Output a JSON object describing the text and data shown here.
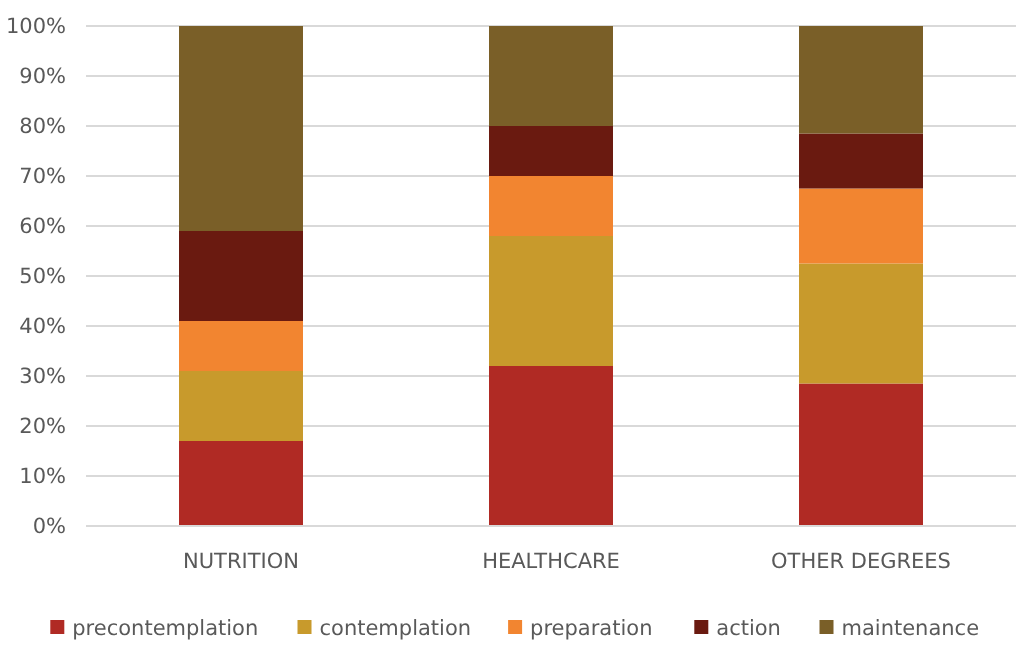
{
  "chart_data": {
    "type": "bar",
    "stacked": true,
    "categories": [
      "NUTRITION",
      "HEALTHCARE",
      "OTHER DEGREES"
    ],
    "series": [
      {
        "name": "precontemplation",
        "color": "#b02a24",
        "values": [
          17,
          32,
          28.5
        ]
      },
      {
        "name": "contemplation",
        "color": "#c89a2c",
        "values": [
          14,
          26,
          24
        ]
      },
      {
        "name": "preparation",
        "color": "#f28530",
        "values": [
          10,
          12,
          15
        ]
      },
      {
        "name": "action",
        "color": "#6a1a10",
        "values": [
          18,
          10,
          11
        ]
      },
      {
        "name": "maintenance",
        "color": "#7a5f28",
        "values": [
          41,
          20,
          21.5
        ]
      }
    ],
    "ylim": [
      0,
      100
    ],
    "yticks": [
      {
        "value": 0,
        "label": "0%"
      },
      {
        "value": 10,
        "label": "10%"
      },
      {
        "value": 20,
        "label": "20%"
      },
      {
        "value": 30,
        "label": "30%"
      },
      {
        "value": 40,
        "label": "40%"
      },
      {
        "value": 50,
        "label": "50%"
      },
      {
        "value": 60,
        "label": "60%"
      },
      {
        "value": 70,
        "label": "70%"
      },
      {
        "value": 80,
        "label": "80%"
      },
      {
        "value": 90,
        "label": "90%"
      },
      {
        "value": 100,
        "label": "100%"
      }
    ],
    "grid": "y",
    "legend": "bottom"
  }
}
